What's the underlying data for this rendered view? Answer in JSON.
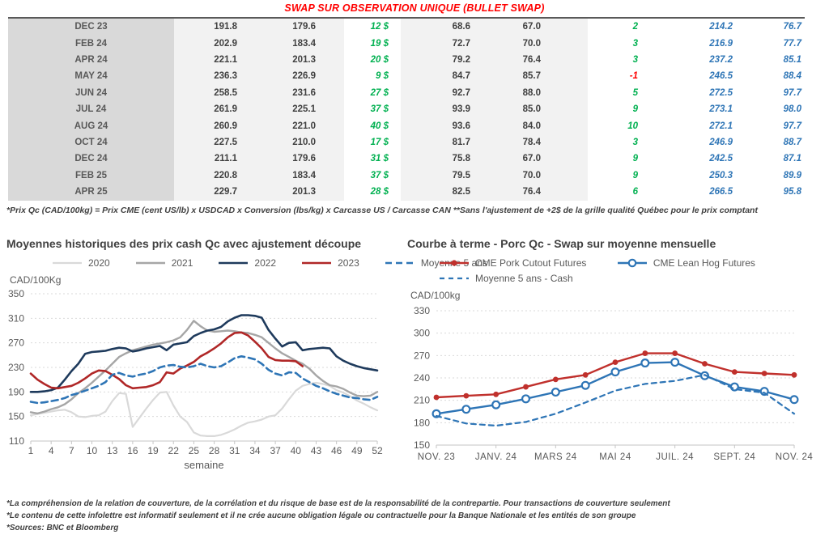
{
  "header": {
    "title": "SWAP SUR OBSERVATION UNIQUE (BULLET SWAP)"
  },
  "table": {
    "rows": [
      [
        "DEC 23",
        "191.8",
        "179.6",
        "12 $",
        "68.6",
        "67.0",
        "2",
        "214.2",
        "76.7"
      ],
      [
        "FEB 24",
        "202.9",
        "183.4",
        "19 $",
        "72.7",
        "70.0",
        "3",
        "216.9",
        "77.7"
      ],
      [
        "APR 24",
        "221.1",
        "201.3",
        "20 $",
        "79.2",
        "76.4",
        "3",
        "237.2",
        "85.1"
      ],
      [
        "MAY 24",
        "236.3",
        "226.9",
        "9 $",
        "84.7",
        "85.7",
        "-1",
        "246.5",
        "88.4"
      ],
      [
        "JUN 24",
        "258.5",
        "231.6",
        "27 $",
        "92.7",
        "88.0",
        "5",
        "272.5",
        "97.7"
      ],
      [
        "JUL 24",
        "261.9",
        "225.1",
        "37 $",
        "93.9",
        "85.0",
        "9",
        "273.1",
        "98.0"
      ],
      [
        "AUG 24",
        "260.9",
        "221.0",
        "40 $",
        "93.6",
        "84.0",
        "10",
        "272.1",
        "97.7"
      ],
      [
        "OCT 24",
        "227.5",
        "210.0",
        "17 $",
        "81.7",
        "78.4",
        "3",
        "246.9",
        "88.7"
      ],
      [
        "DEC 24",
        "211.1",
        "179.6",
        "31 $",
        "75.8",
        "67.0",
        "9",
        "242.5",
        "87.1"
      ],
      [
        "FEB 25",
        "220.8",
        "183.4",
        "37 $",
        "79.5",
        "70.0",
        "9",
        "250.3",
        "89.9"
      ],
      [
        "APR 25",
        "229.7",
        "201.3",
        "28 $",
        "82.5",
        "76.4",
        "6",
        "266.5",
        "95.8"
      ]
    ]
  },
  "notes": {
    "formula": "*Prix Qc (CAD/100kg) = Prix CME (cent US/lb) x USDCAD x Conversion (lbs/kg) x Carcasse US / Carcasse CAN **Sans l'ajustement de +2$ de la grille qualité Québec pour le prix comptant"
  },
  "chart_data": [
    {
      "type": "line",
      "title": "Moyennes historiques des prix cash Qc avec ajustement découpe",
      "ylabel_unit": "CAD/100Kg",
      "xlabel": "semaine",
      "ylim": [
        110,
        350
      ],
      "yticks": [
        110,
        150,
        190,
        230,
        270,
        310,
        350
      ],
      "grid": true,
      "legend_position": "top",
      "x_count": 52,
      "xticks": [
        [
          0,
          "1"
        ],
        [
          3,
          "4"
        ],
        [
          6,
          "7"
        ],
        [
          9,
          "10"
        ],
        [
          12,
          "13"
        ],
        [
          15,
          "16"
        ],
        [
          18,
          "19"
        ],
        [
          21,
          "22"
        ],
        [
          24,
          "25"
        ],
        [
          27,
          "28"
        ],
        [
          30,
          "31"
        ],
        [
          33,
          "34"
        ],
        [
          36,
          "37"
        ],
        [
          39,
          "40"
        ],
        [
          42,
          "43"
        ],
        [
          45,
          "46"
        ],
        [
          48,
          "49"
        ],
        [
          51,
          "52"
        ]
      ],
      "series": [
        {
          "name": "2020",
          "color": "#d9d9d9",
          "width": 2.2,
          "values": [
            152,
            154,
            156,
            158,
            160,
            161,
            157,
            150,
            149,
            151,
            152,
            158,
            175,
            188,
            187,
            133,
            148,
            163,
            177,
            189,
            190,
            168,
            150,
            141,
            124,
            119,
            118,
            118,
            120,
            124,
            129,
            135,
            140,
            142,
            145,
            150,
            152,
            163,
            178,
            192,
            200,
            203,
            205,
            203,
            200,
            193,
            189,
            183,
            176,
            171,
            165,
            160
          ]
        },
        {
          "name": "2021",
          "color": "#a6a6a6",
          "width": 2.4,
          "values": [
            157,
            155,
            158,
            162,
            165,
            170,
            178,
            188,
            196,
            205,
            215,
            225,
            236,
            247,
            253,
            258,
            261,
            264,
            267,
            269,
            271,
            274,
            279,
            291,
            306,
            297,
            290,
            288,
            289,
            290,
            289,
            287,
            286,
            283,
            279,
            270,
            261,
            253,
            247,
            241,
            236,
            228,
            217,
            208,
            201,
            199,
            195,
            189,
            184,
            183,
            184,
            190
          ]
        },
        {
          "name": "2022",
          "color": "#1e3a5c",
          "width": 2.6,
          "values": [
            190,
            190,
            191,
            193,
            197,
            210,
            224,
            236,
            252,
            255,
            256,
            257,
            260,
            262,
            261,
            256,
            258,
            261,
            263,
            265,
            258,
            267,
            269,
            271,
            281,
            286,
            290,
            292,
            296,
            305,
            311,
            315,
            315,
            314,
            311,
            291,
            277,
            264,
            270,
            271,
            258,
            260,
            261,
            262,
            261,
            248,
            241,
            236,
            232,
            229,
            227,
            225
          ]
        },
        {
          "name": "2023",
          "color": "#b02727",
          "width": 2.6,
          "values": [
            220,
            210,
            203,
            197,
            196,
            198,
            200,
            205,
            212,
            220,
            225,
            224,
            218,
            211,
            201,
            196,
            197,
            198,
            201,
            206,
            222,
            220,
            228,
            233,
            239,
            248,
            254,
            261,
            269,
            279,
            286,
            287,
            282,
            272,
            261,
            247,
            242,
            241,
            241,
            240,
            232
          ]
        },
        {
          "name": "Moyenne 5 ans",
          "color": "#2e75b6",
          "width": 2.6,
          "dash": "8,5",
          "values": [
            174,
            172,
            173,
            175,
            177,
            180,
            185,
            188,
            192,
            196,
            200,
            206,
            218,
            221,
            217,
            215,
            218,
            220,
            224,
            230,
            233,
            234,
            231,
            230,
            232,
            236,
            232,
            230,
            232,
            238,
            245,
            248,
            246,
            243,
            236,
            226,
            220,
            217,
            222,
            221,
            212,
            206,
            200,
            196,
            191,
            187,
            184,
            181,
            180,
            178,
            177,
            182
          ]
        }
      ]
    },
    {
      "type": "line",
      "title": "Courbe à terme - Porc Qc - Swap sur moyenne mensuelle",
      "ylabel_unit": "CAD/100kg",
      "xlabel": "",
      "ylim": [
        150,
        330
      ],
      "yticks": [
        150,
        180,
        210,
        240,
        270,
        300,
        330
      ],
      "grid": true,
      "legend_position": "top",
      "x_count": 13,
      "xticks": [
        [
          0,
          "NOV. 23"
        ],
        [
          2,
          "JANV. 24"
        ],
        [
          4,
          "MARS 24"
        ],
        [
          6,
          "MAI 24"
        ],
        [
          8,
          "JUIL. 24"
        ],
        [
          10,
          "SEPT. 24"
        ],
        [
          12,
          "NOV. 24"
        ]
      ],
      "series": [
        {
          "name": "CME Pork Cutout Futures",
          "color": "#c0302c",
          "width": 2.4,
          "marker": "filled",
          "values": [
            214,
            216,
            218,
            228,
            238,
            244,
            261,
            273,
            273,
            259,
            248,
            246,
            244
          ]
        },
        {
          "name": "CME Lean Hog Futures",
          "color": "#2e75b6",
          "width": 2.4,
          "marker": "open",
          "values": [
            192,
            198,
            204,
            212,
            221,
            230,
            248,
            260,
            261,
            243,
            228,
            222,
            211
          ]
        },
        {
          "name": "Moyenne 5 ans - Cash",
          "color": "#2e75b6",
          "width": 2.2,
          "dash": "6,5",
          "values": [
            189,
            179,
            176,
            181,
            192,
            207,
            223,
            232,
            236,
            244,
            225,
            220,
            192
          ]
        }
      ]
    }
  ],
  "footer": {
    "lines": [
      "*La compréhension de la relation de couverture, de la corrélation et du risque de base est de la responsabilité de la contrepartie. Pour transactions de couverture seulement",
      "*Le contenu de cette infolettre est informatif seulement et il ne crée aucune obligation légale ou contractuelle pour la Banque Nationale et les entités de son groupe",
      "*Sources: BNC et Bloomberg"
    ]
  }
}
